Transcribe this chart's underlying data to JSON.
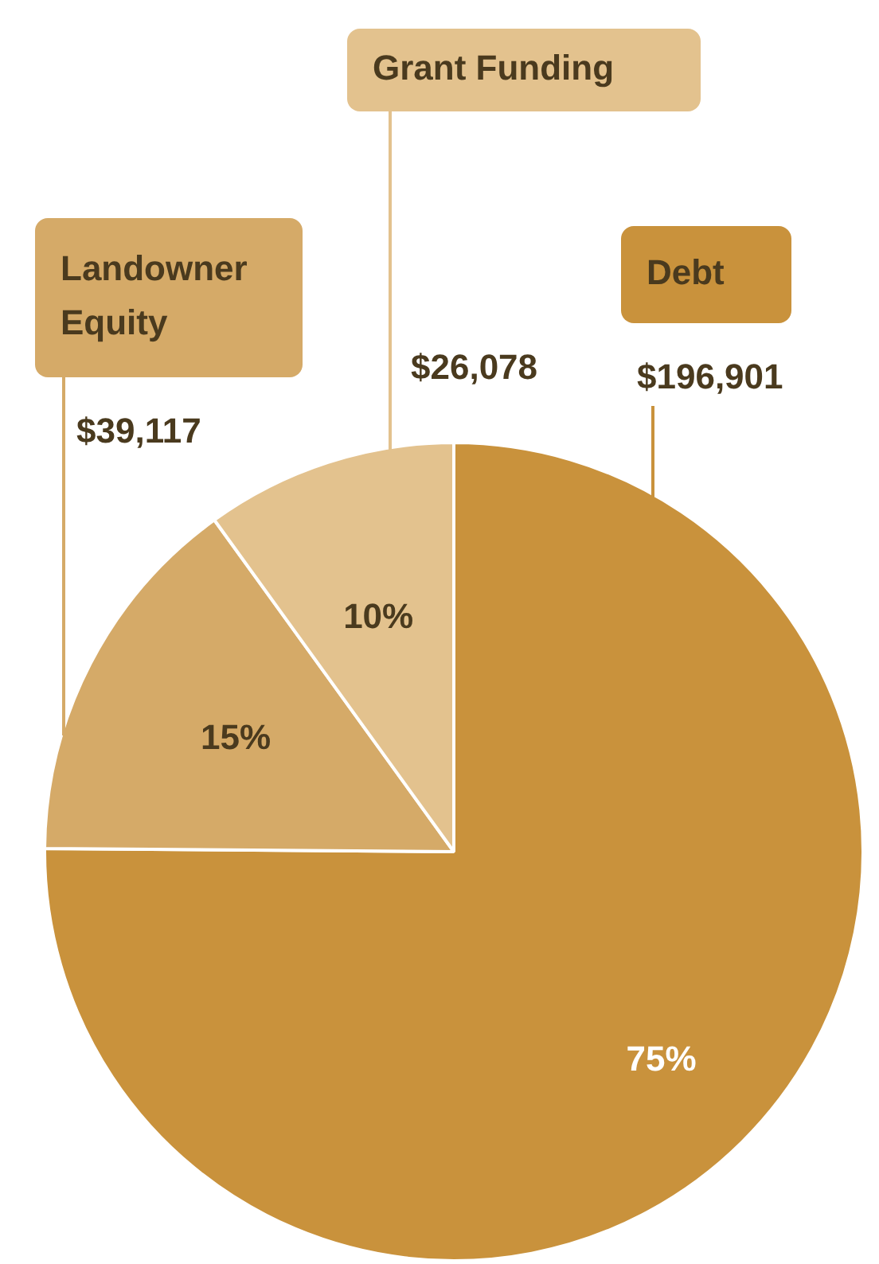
{
  "chart_data": {
    "type": "pie",
    "categories": [
      "Debt",
      "Landowner Equity",
      "Grant Funding"
    ],
    "values": [
      196901,
      39117,
      26078
    ],
    "colors": [
      "#c9923c",
      "#d5aa68",
      "#e3c28e"
    ],
    "value_labels": [
      "$196,901",
      "$39,117",
      "$26,078"
    ],
    "annotations": [
      "75%",
      "15%",
      "10%"
    ]
  }
}
